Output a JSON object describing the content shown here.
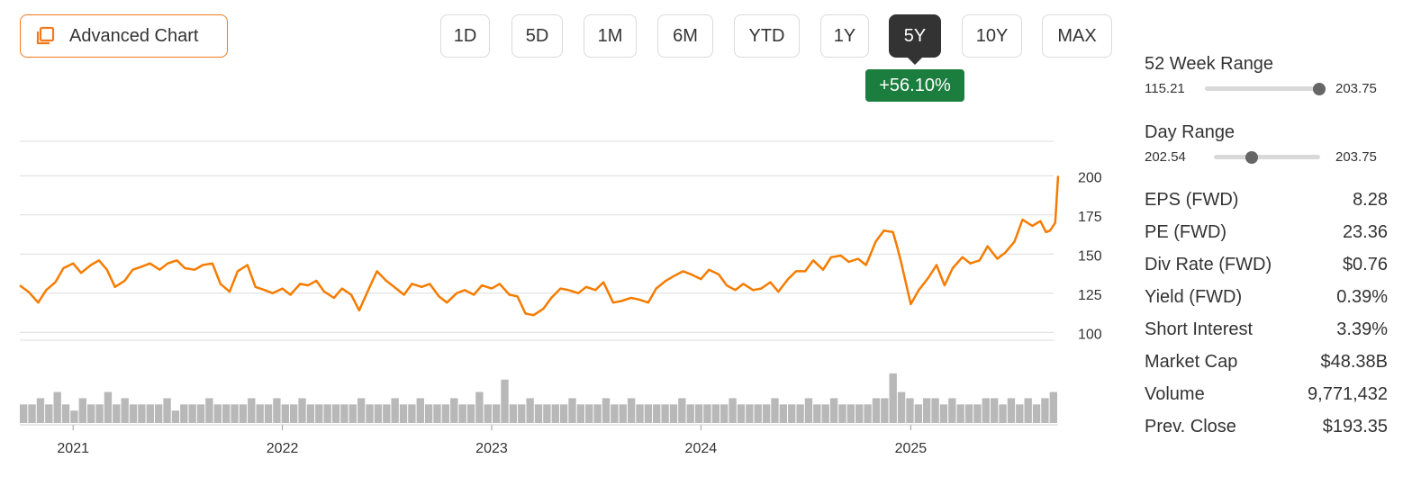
{
  "advanced_chart": {
    "label": "Advanced Chart",
    "icon": "copy-window-icon"
  },
  "periods": [
    {
      "label": "1D",
      "active": false
    },
    {
      "label": "5D",
      "active": false
    },
    {
      "label": "1M",
      "active": false
    },
    {
      "label": "6M",
      "active": false
    },
    {
      "label": "YTD",
      "active": false
    },
    {
      "label": "1Y",
      "active": false
    },
    {
      "label": "5Y",
      "active": true
    },
    {
      "label": "10Y",
      "active": false
    },
    {
      "label": "MAX",
      "active": false
    }
  ],
  "change_badge": "+56.10%",
  "colors": {
    "line": "#f57c00",
    "volume": "#b8b8b8",
    "badge": "#1b7d3e",
    "accent_border": "#f07a1f"
  },
  "chart_data": {
    "type": "line",
    "title": "",
    "xlabel": "",
    "ylabel": "",
    "ylim": [
      95,
      222
    ],
    "y_ticks": [
      100,
      125,
      150,
      175,
      200
    ],
    "x_ticks": [
      "2021",
      "2022",
      "2023",
      "2024",
      "2025"
    ],
    "x_range": [
      "2020-09-30",
      "2025-09-15"
    ],
    "grid": true,
    "legend": "none",
    "series": [
      {
        "x": [
          "2020-09-30",
          "2020-10-15",
          "2020-11-01",
          "2020-11-15",
          "2020-12-01",
          "2020-12-15",
          "2021-01-01",
          "2021-01-15",
          "2021-02-01",
          "2021-02-15",
          "2021-03-01",
          "2021-03-15",
          "2021-04-01",
          "2021-04-15",
          "2021-05-01",
          "2021-05-15",
          "2021-06-01",
          "2021-06-15",
          "2021-07-01",
          "2021-07-15",
          "2021-08-01",
          "2021-08-15",
          "2021-09-01",
          "2021-09-15",
          "2021-10-01",
          "2021-10-15",
          "2021-11-01",
          "2021-11-15",
          "2021-12-01",
          "2021-12-15",
          "2022-01-01",
          "2022-01-15",
          "2022-02-01",
          "2022-02-15",
          "2022-03-01",
          "2022-03-15",
          "2022-04-01",
          "2022-04-15",
          "2022-05-01",
          "2022-05-15",
          "2022-06-01",
          "2022-06-15",
          "2022-07-01",
          "2022-07-15",
          "2022-08-01",
          "2022-08-15",
          "2022-09-01",
          "2022-09-15",
          "2022-10-01",
          "2022-10-15",
          "2022-11-01",
          "2022-11-15",
          "2022-12-01",
          "2022-12-15",
          "2023-01-01",
          "2023-01-15",
          "2023-02-01",
          "2023-02-15",
          "2023-03-01",
          "2023-03-15",
          "2023-04-01",
          "2023-04-15",
          "2023-05-01",
          "2023-05-15",
          "2023-06-01",
          "2023-06-15",
          "2023-07-01",
          "2023-07-15",
          "2023-08-01",
          "2023-08-15",
          "2023-09-01",
          "2023-09-15",
          "2023-10-01",
          "2023-10-15",
          "2023-11-01",
          "2023-11-15",
          "2023-12-01",
          "2023-12-15",
          "2024-01-01",
          "2024-01-15",
          "2024-02-01",
          "2024-02-15",
          "2024-03-01",
          "2024-03-15",
          "2024-04-01",
          "2024-04-15",
          "2024-05-01",
          "2024-05-15",
          "2024-06-01",
          "2024-06-15",
          "2024-07-01",
          "2024-07-15",
          "2024-08-01",
          "2024-08-15",
          "2024-09-01",
          "2024-09-15",
          "2024-10-01",
          "2024-10-15",
          "2024-11-01",
          "2024-11-15",
          "2024-12-01",
          "2024-12-08",
          "2024-12-15",
          "2025-01-01",
          "2025-01-15",
          "2025-02-01",
          "2025-02-15",
          "2025-03-01",
          "2025-03-15",
          "2025-04-01",
          "2025-04-15",
          "2025-05-01",
          "2025-05-15",
          "2025-06-01",
          "2025-06-15",
          "2025-07-01",
          "2025-07-15",
          "2025-08-01",
          "2025-08-15",
          "2025-08-25",
          "2025-09-01",
          "2025-09-10",
          "2025-09-15"
        ],
        "y": [
          130,
          126,
          119,
          127,
          132,
          141,
          144,
          138,
          143,
          146,
          140,
          129,
          133,
          140,
          142,
          144,
          140,
          144,
          146,
          141,
          140,
          143,
          144,
          131,
          126,
          139,
          143,
          129,
          127,
          125,
          128,
          124,
          131,
          130,
          133,
          126,
          122,
          128,
          124,
          114,
          128,
          139,
          133,
          129,
          124,
          131,
          129,
          131,
          123,
          119,
          125,
          127,
          124,
          130,
          128,
          131,
          124,
          123,
          112,
          111,
          115,
          122,
          128,
          127,
          125,
          129,
          127,
          132,
          119,
          120,
          122,
          121,
          119,
          128,
          133,
          136,
          139,
          137,
          134,
          140,
          137,
          130,
          127,
          131,
          127,
          128,
          132,
          126,
          134,
          139,
          139,
          146,
          140,
          148,
          149,
          145,
          147,
          143,
          158,
          165,
          164,
          155,
          145,
          118,
          127,
          135,
          143,
          130,
          141,
          148,
          144,
          146,
          155,
          147,
          151,
          158,
          172,
          168,
          171,
          164,
          165,
          170,
          200
        ]
      }
    ],
    "volume": [
      3,
      3,
      4,
      3,
      5,
      3,
      2,
      4,
      3,
      3,
      5,
      3,
      4,
      3,
      3,
      3,
      3,
      4,
      2,
      3,
      3,
      3,
      4,
      3,
      3,
      3,
      3,
      4,
      3,
      3,
      4,
      3,
      3,
      4,
      3,
      3,
      3,
      3,
      3,
      3,
      4,
      3,
      3,
      3,
      4,
      3,
      3,
      4,
      3,
      3,
      3,
      4,
      3,
      3,
      5,
      3,
      3,
      7,
      3,
      3,
      4,
      3,
      3,
      3,
      3,
      4,
      3,
      3,
      3,
      4,
      3,
      3,
      4,
      3,
      3,
      3,
      3,
      3,
      4,
      3,
      3,
      3,
      3,
      3,
      4,
      3,
      3,
      3,
      3,
      4,
      3,
      3,
      3,
      4,
      3,
      3,
      4,
      3,
      3,
      3,
      3,
      4,
      4,
      8,
      5,
      4,
      3,
      4,
      4,
      3,
      4,
      3,
      3,
      3,
      4,
      4,
      3,
      4,
      3,
      4,
      3,
      4,
      5
    ]
  },
  "stats": {
    "week52": {
      "title": "52 Week Range",
      "low": "115.21",
      "high": "203.75",
      "position": 0.99
    },
    "day": {
      "title": "Day Range",
      "low": "202.54",
      "high": "203.75",
      "position": 0.36
    },
    "rows": [
      {
        "label": "EPS (FWD)",
        "value": "8.28"
      },
      {
        "label": "PE (FWD)",
        "value": "23.36"
      },
      {
        "label": "Div Rate (FWD)",
        "value": "$0.76"
      },
      {
        "label": "Yield (FWD)",
        "value": "0.39%"
      },
      {
        "label": "Short Interest",
        "value": "3.39%"
      },
      {
        "label": "Market Cap",
        "value": "$48.38B"
      },
      {
        "label": "Volume",
        "value": "9,771,432"
      },
      {
        "label": "Prev. Close",
        "value": "$193.35"
      }
    ]
  }
}
